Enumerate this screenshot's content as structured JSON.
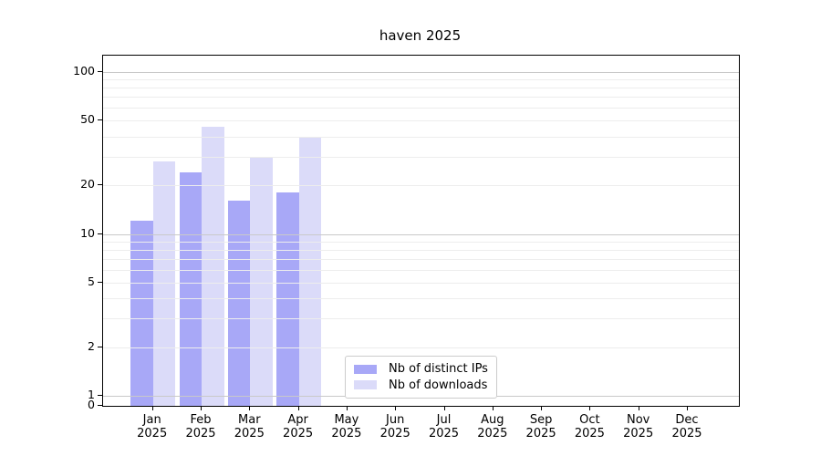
{
  "chart_data": {
    "type": "bar",
    "title": "haven 2025",
    "categories": [
      "Jan",
      "Feb",
      "Mar",
      "Apr",
      "May",
      "Jun",
      "Jul",
      "Aug",
      "Sep",
      "Oct",
      "Nov",
      "Dec"
    ],
    "x_tick_second_line": "2025",
    "series": [
      {
        "name": "Nb of distinct IPs",
        "color": "#a8a8f7",
        "values": [
          12,
          24,
          16,
          18,
          0,
          0,
          0,
          0,
          0,
          0,
          0,
          0
        ]
      },
      {
        "name": "Nb of downloads",
        "color": "#dbdbf9",
        "values": [
          28,
          46,
          30,
          40,
          0,
          0,
          0,
          0,
          0,
          0,
          0,
          0
        ]
      }
    ],
    "xlabel": "",
    "ylabel": "",
    "yscale": "log-with-zero-baseline",
    "y_tick_labels": [
      "100",
      "50",
      "20",
      "10",
      "5",
      "2",
      "1",
      "0"
    ],
    "y_tick_values": [
      100,
      50,
      20,
      10,
      5,
      2,
      1,
      0
    ],
    "gridline_values": [
      100,
      90,
      80,
      70,
      60,
      50,
      40,
      30,
      20,
      10,
      9,
      8,
      7,
      6,
      5,
      4,
      3,
      2,
      1
    ],
    "major_gridline_values": [
      100,
      10,
      1
    ],
    "ylim": [
      0,
      126
    ],
    "grid": "horizontal",
    "legend_position": "lower center",
    "colors": {
      "axis": "#000000",
      "grid_minor": "#ededed",
      "grid_major": "#c9c9c9",
      "legend_border": "#cccccc",
      "text": "#000000"
    }
  }
}
